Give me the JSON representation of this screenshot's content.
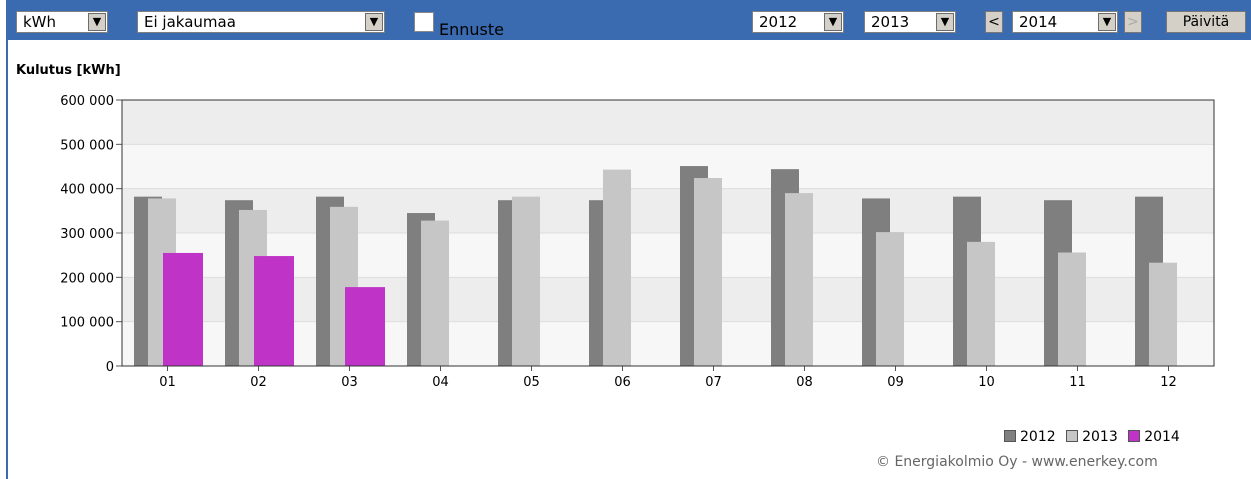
{
  "toolbar": {
    "unit_select": "kWh",
    "distribution_select": "Ei jakaumaa",
    "forecast_label": "Ennuste",
    "forecast_checked": false,
    "year_select_1": "2012",
    "year_select_2": "2013",
    "prev_label": "<",
    "year_select_3": "2014",
    "next_label": ">",
    "update_label": "Päivitä"
  },
  "chart_data": {
    "type": "bar",
    "title": "",
    "ylabel": "Kulutus [kWh]",
    "xlabel": "",
    "categories": [
      "01",
      "02",
      "03",
      "04",
      "05",
      "06",
      "07",
      "08",
      "09",
      "10",
      "11",
      "12"
    ],
    "ylim": [
      0,
      600000
    ],
    "yticks": [
      0,
      100000,
      200000,
      300000,
      400000,
      500000,
      600000
    ],
    "ytick_labels": [
      "0",
      "100 000",
      "200 000",
      "300 000",
      "400 000",
      "500 000",
      "600 000"
    ],
    "series": [
      {
        "name": "2012",
        "color": "#7f7f7f",
        "values": [
          382000,
          374000,
          382000,
          345000,
          374000,
          374000,
          451000,
          444000,
          378000,
          382000,
          374000,
          382000
        ]
      },
      {
        "name": "2013",
        "color": "#c6c6c6",
        "values": [
          378000,
          352000,
          359000,
          328000,
          382000,
          443000,
          424000,
          390000,
          302000,
          280000,
          256000,
          233000
        ]
      },
      {
        "name": "2014",
        "color": "#bf34c6",
        "values": [
          255000,
          248000,
          178000,
          null,
          null,
          null,
          null,
          null,
          null,
          null,
          null,
          null
        ]
      }
    ],
    "legend_position": "bottom-right",
    "grid": true
  },
  "footer": {
    "copyright": "© Energiakolmio Oy - www.enerkey.com"
  }
}
